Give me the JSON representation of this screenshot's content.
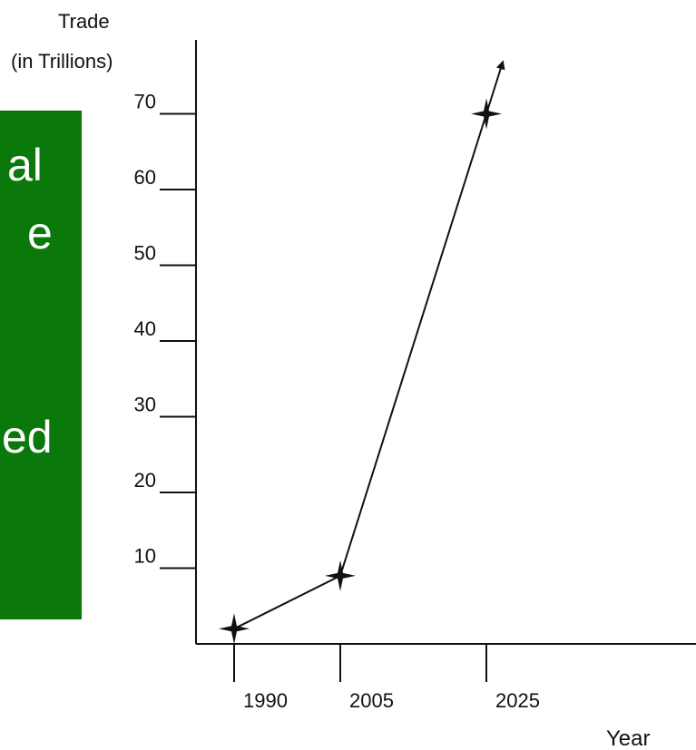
{
  "panel": {
    "background": "#0a780a",
    "fragments": [
      "al",
      "e",
      "ed"
    ]
  },
  "chart_data": {
    "type": "line",
    "ylabel_line1": "Trade",
    "ylabel_line2": "(in Trillions)",
    "xlabel": "Year",
    "x_categories": [
      "1990",
      "2005",
      "2025"
    ],
    "yticks": [
      10,
      20,
      30,
      40,
      50,
      60,
      70
    ],
    "ylim": [
      0,
      70
    ],
    "series": [
      {
        "values": [
          2,
          9,
          70
        ]
      }
    ],
    "marker": "four-point-star",
    "trend_arrow": true,
    "grid": false,
    "line_color": "#111111"
  }
}
